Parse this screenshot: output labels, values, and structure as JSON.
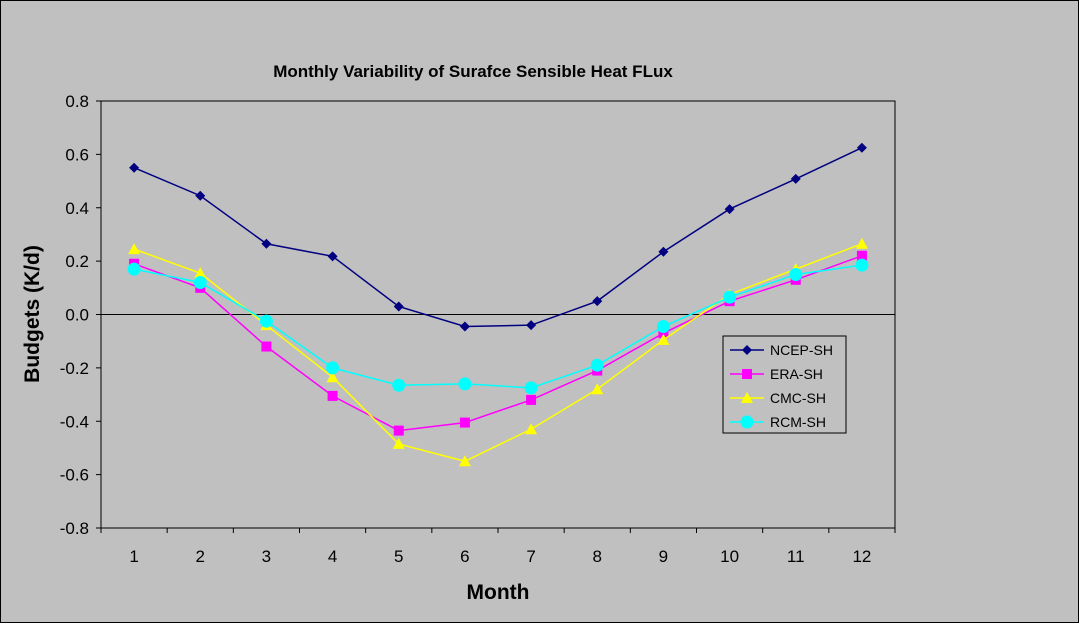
{
  "chart_data": {
    "type": "line",
    "title": "Monthly Variability of Surafce Sensible Heat FLux",
    "xlabel": "Month",
    "ylabel": "Budgets (K/d)",
    "x": [
      1,
      2,
      3,
      4,
      5,
      6,
      7,
      8,
      9,
      10,
      11,
      12
    ],
    "ylim": [
      -0.8,
      0.8
    ],
    "yticks": [
      "-0.8",
      "-0.6",
      "-0.4",
      "-0.2",
      "0.0",
      "0.2",
      "0.4",
      "0.6",
      "0.8"
    ],
    "grid": false,
    "legend_position": "right",
    "plot_background": "#c0c0c0",
    "series": [
      {
        "name": "NCEP-SH",
        "color": "#000080",
        "marker": "diamond",
        "values": [
          0.55,
          0.445,
          0.265,
          0.218,
          0.03,
          -0.045,
          -0.04,
          0.05,
          0.235,
          0.395,
          0.508,
          0.625
        ]
      },
      {
        "name": "ERA-SH",
        "color": "#ff00ff",
        "marker": "square",
        "values": [
          0.19,
          0.1,
          -0.12,
          -0.305,
          -0.435,
          -0.405,
          -0.32,
          -0.21,
          -0.07,
          0.05,
          0.13,
          0.22
        ]
      },
      {
        "name": "CMC-SH",
        "color": "#ffff00",
        "marker": "triangle",
        "values": [
          0.245,
          0.155,
          -0.04,
          -0.235,
          -0.485,
          -0.55,
          -0.43,
          -0.28,
          -0.095,
          0.075,
          0.17,
          0.265
        ]
      },
      {
        "name": "RCM-SH",
        "color": "#00ffff",
        "marker": "circle",
        "values": [
          0.17,
          0.12,
          -0.025,
          -0.2,
          -0.265,
          -0.26,
          -0.275,
          -0.19,
          -0.045,
          0.065,
          0.15,
          0.185
        ]
      }
    ]
  }
}
